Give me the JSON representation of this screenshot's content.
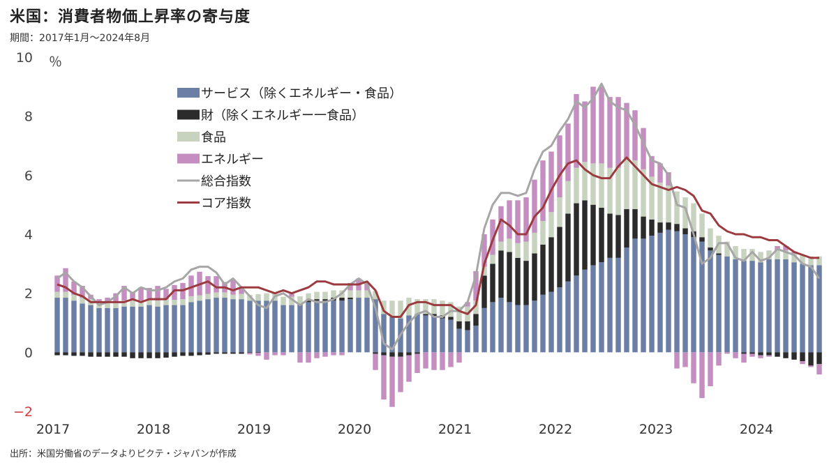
{
  "title": "米国：消費者物価上昇率の寄与度",
  "subtitle": "期間：2017年1月～2024年8月",
  "source": "出所：米国労働省のデータよりピクテ・ジャパンが作成",
  "chart_data": {
    "type": "bar",
    "stacked": true,
    "ylabel": "％",
    "ylim": [
      -2,
      10
    ],
    "yticks": [
      -2,
      0,
      2,
      4,
      6,
      8,
      10
    ],
    "xticks": [
      "2017",
      "2018",
      "2019",
      "2020",
      "2021",
      "2022",
      "2023",
      "2024"
    ],
    "x": [
      "2017-01",
      "2017-02",
      "2017-03",
      "2017-04",
      "2017-05",
      "2017-06",
      "2017-07",
      "2017-08",
      "2017-09",
      "2017-10",
      "2017-11",
      "2017-12",
      "2018-01",
      "2018-02",
      "2018-03",
      "2018-04",
      "2018-05",
      "2018-06",
      "2018-07",
      "2018-08",
      "2018-09",
      "2018-10",
      "2018-11",
      "2018-12",
      "2019-01",
      "2019-02",
      "2019-03",
      "2019-04",
      "2019-05",
      "2019-06",
      "2019-07",
      "2019-08",
      "2019-09",
      "2019-10",
      "2019-11",
      "2019-12",
      "2020-01",
      "2020-02",
      "2020-03",
      "2020-04",
      "2020-05",
      "2020-06",
      "2020-07",
      "2020-08",
      "2020-09",
      "2020-10",
      "2020-11",
      "2020-12",
      "2021-01",
      "2021-02",
      "2021-03",
      "2021-04",
      "2021-05",
      "2021-06",
      "2021-07",
      "2021-08",
      "2021-09",
      "2021-10",
      "2021-11",
      "2021-12",
      "2022-01",
      "2022-02",
      "2022-03",
      "2022-04",
      "2022-05",
      "2022-06",
      "2022-07",
      "2022-08",
      "2022-09",
      "2022-10",
      "2022-11",
      "2022-12",
      "2023-01",
      "2023-02",
      "2023-03",
      "2023-04",
      "2023-05",
      "2023-06",
      "2023-07",
      "2023-08",
      "2023-09",
      "2023-10",
      "2023-11",
      "2023-12",
      "2024-01",
      "2024-02",
      "2024-03",
      "2024-04",
      "2024-05",
      "2024-06",
      "2024-07",
      "2024-08"
    ],
    "legend": {
      "position": "top-left-inside"
    },
    "series": [
      {
        "name": "サービス（除くエネルギー・食品）",
        "kind": "bar",
        "color": "#6b7fa5",
        "values": [
          1.85,
          1.85,
          1.75,
          1.65,
          1.6,
          1.5,
          1.5,
          1.5,
          1.55,
          1.55,
          1.55,
          1.6,
          1.55,
          1.6,
          1.6,
          1.6,
          1.7,
          1.75,
          1.8,
          1.85,
          1.85,
          1.8,
          1.8,
          1.75,
          1.75,
          1.75,
          1.75,
          1.6,
          1.6,
          1.65,
          1.7,
          1.75,
          1.75,
          1.75,
          1.75,
          1.8,
          1.85,
          1.85,
          1.8,
          1.3,
          1.2,
          1.15,
          1.25,
          1.3,
          1.25,
          1.2,
          1.15,
          1.1,
          0.8,
          0.75,
          0.9,
          1.5,
          1.7,
          1.85,
          1.7,
          1.6,
          1.6,
          1.75,
          1.95,
          2.05,
          2.2,
          2.4,
          2.6,
          2.8,
          2.95,
          3.05,
          3.2,
          3.2,
          3.55,
          3.85,
          3.85,
          3.95,
          4.05,
          4.15,
          4.1,
          4.0,
          3.9,
          3.75,
          3.45,
          3.3,
          3.25,
          3.15,
          3.1,
          3.1,
          3.05,
          3.15,
          3.15,
          3.15,
          3.05,
          3.0,
          2.95,
          2.95
        ]
      },
      {
        "name": "財（除くエネルギー一食品）",
        "kind": "bar",
        "color": "#2b2b2b",
        "values": [
          -0.1,
          -0.1,
          -0.12,
          -0.12,
          -0.15,
          -0.15,
          -0.15,
          -0.15,
          -0.15,
          -0.2,
          -0.2,
          -0.2,
          -0.2,
          -0.18,
          -0.15,
          -0.12,
          -0.12,
          -0.1,
          -0.08,
          -0.05,
          -0.05,
          -0.05,
          -0.05,
          -0.02,
          -0.02,
          0.0,
          0.0,
          0.0,
          0.0,
          0.0,
          0.05,
          0.05,
          0.05,
          0.1,
          0.1,
          0.05,
          0.0,
          0.0,
          -0.05,
          -0.1,
          -0.15,
          -0.15,
          -0.1,
          -0.05,
          0.05,
          0.1,
          0.1,
          0.1,
          0.25,
          0.3,
          0.4,
          1.1,
          1.3,
          1.6,
          1.7,
          1.6,
          1.5,
          1.6,
          1.7,
          1.85,
          2.05,
          2.3,
          2.45,
          2.35,
          2.05,
          1.85,
          1.5,
          1.45,
          1.3,
          1.0,
          0.75,
          0.55,
          0.35,
          0.25,
          0.25,
          0.2,
          0.2,
          0.15,
          0.1,
          0.05,
          0.0,
          0.0,
          -0.05,
          -0.05,
          -0.1,
          -0.1,
          -0.15,
          -0.2,
          -0.25,
          -0.3,
          -0.45,
          -0.4
        ]
      },
      {
        "name": "食品",
        "kind": "bar",
        "color": "#c7d2bf",
        "values": [
          0.2,
          0.2,
          0.2,
          0.2,
          0.2,
          0.2,
          0.2,
          0.2,
          0.2,
          0.2,
          0.2,
          0.18,
          0.2,
          0.2,
          0.18,
          0.2,
          0.2,
          0.18,
          0.18,
          0.18,
          0.18,
          0.15,
          0.18,
          0.2,
          0.22,
          0.25,
          0.28,
          0.28,
          0.28,
          0.25,
          0.25,
          0.25,
          0.25,
          0.25,
          0.25,
          0.25,
          0.25,
          0.25,
          0.28,
          0.45,
          0.55,
          0.6,
          0.6,
          0.5,
          0.5,
          0.5,
          0.5,
          0.5,
          0.5,
          0.5,
          0.45,
          0.3,
          0.3,
          0.3,
          0.45,
          0.5,
          0.65,
          0.7,
          0.8,
          0.85,
          1.0,
          1.1,
          1.2,
          1.3,
          1.4,
          1.5,
          1.55,
          1.6,
          1.7,
          1.65,
          1.6,
          1.45,
          1.35,
          1.25,
          1.1,
          1.05,
          0.95,
          0.8,
          0.65,
          0.6,
          0.5,
          0.45,
          0.4,
          0.4,
          0.35,
          0.3,
          0.3,
          0.3,
          0.3,
          0.3,
          0.3,
          0.3
        ]
      },
      {
        "name": "エネルギー",
        "kind": "bar",
        "color": "#c48fc0",
        "values": [
          0.55,
          0.8,
          0.45,
          0.4,
          0.15,
          0.1,
          0.15,
          0.3,
          0.5,
          0.3,
          0.45,
          0.4,
          0.5,
          0.35,
          0.5,
          0.55,
          0.7,
          0.8,
          0.6,
          0.55,
          0.35,
          0.5,
          0.2,
          -0.05,
          -0.1,
          -0.25,
          -0.1,
          -0.1,
          0.1,
          -0.35,
          -0.35,
          -0.2,
          -0.15,
          -0.1,
          -0.1,
          0.25,
          0.4,
          0.25,
          -0.55,
          -1.5,
          -1.7,
          -1.2,
          -0.9,
          -0.65,
          -0.55,
          -0.6,
          -0.6,
          -0.5,
          -0.35,
          0.15,
          1.0,
          1.1,
          1.2,
          1.2,
          1.3,
          1.45,
          1.5,
          1.8,
          2.05,
          2.05,
          2.1,
          1.95,
          2.5,
          2.05,
          2.6,
          2.6,
          2.4,
          2.4,
          1.9,
          1.7,
          1.4,
          0.7,
          0.65,
          0.45,
          -0.55,
          -0.5,
          -1.05,
          -1.55,
          -1.15,
          -0.45,
          -0.05,
          -0.2,
          -0.3,
          -0.1,
          -0.1,
          -0.05,
          0.15,
          0.15,
          0.05,
          -0.1,
          -0.05,
          -0.35
        ]
      },
      {
        "name": "総合指数",
        "kind": "line",
        "color": "#a6a6a6",
        "values": [
          2.5,
          2.7,
          2.4,
          2.2,
          1.9,
          1.6,
          1.7,
          1.9,
          2.2,
          2.0,
          2.2,
          2.1,
          2.1,
          2.2,
          2.4,
          2.5,
          2.8,
          2.9,
          2.9,
          2.7,
          2.3,
          2.5,
          2.2,
          1.9,
          1.6,
          1.5,
          1.9,
          2.0,
          1.8,
          1.6,
          1.8,
          1.7,
          1.7,
          1.8,
          2.0,
          2.3,
          2.5,
          2.3,
          1.5,
          0.3,
          0.1,
          0.6,
          1.0,
          1.3,
          1.4,
          1.2,
          1.2,
          1.4,
          1.4,
          1.7,
          2.6,
          4.2,
          5.0,
          5.4,
          5.4,
          5.3,
          5.4,
          6.2,
          6.8,
          7.0,
          7.5,
          7.9,
          8.5,
          8.3,
          8.6,
          9.1,
          8.5,
          8.3,
          8.2,
          7.7,
          7.1,
          6.5,
          6.4,
          6.0,
          5.0,
          4.9,
          4.0,
          3.0,
          3.2,
          3.7,
          3.7,
          3.2,
          3.1,
          3.4,
          3.1,
          3.2,
          3.5,
          3.4,
          3.3,
          3.0,
          2.9,
          2.5
        ]
      },
      {
        "name": "コア指数",
        "kind": "line",
        "color": "#9b3a3f",
        "values": [
          2.3,
          2.2,
          2.0,
          1.9,
          1.7,
          1.7,
          1.7,
          1.7,
          1.7,
          1.8,
          1.7,
          1.8,
          1.8,
          1.8,
          2.1,
          2.1,
          2.2,
          2.3,
          2.4,
          2.2,
          2.2,
          2.1,
          2.2,
          2.2,
          2.2,
          2.1,
          2.0,
          2.1,
          2.0,
          2.1,
          2.2,
          2.4,
          2.4,
          2.3,
          2.3,
          2.3,
          2.3,
          2.4,
          2.1,
          1.4,
          1.2,
          1.2,
          1.6,
          1.7,
          1.7,
          1.6,
          1.6,
          1.6,
          1.4,
          1.3,
          1.6,
          3.0,
          3.8,
          4.5,
          4.3,
          4.0,
          4.0,
          4.6,
          4.9,
          5.5,
          6.0,
          6.4,
          6.5,
          6.2,
          6.0,
          5.9,
          5.9,
          6.3,
          6.6,
          6.3,
          6.0,
          5.7,
          5.6,
          5.5,
          5.6,
          5.5,
          5.3,
          4.8,
          4.7,
          4.3,
          4.1,
          4.0,
          4.0,
          3.9,
          3.9,
          3.8,
          3.8,
          3.6,
          3.4,
          3.3,
          3.2,
          3.2
        ]
      }
    ]
  }
}
